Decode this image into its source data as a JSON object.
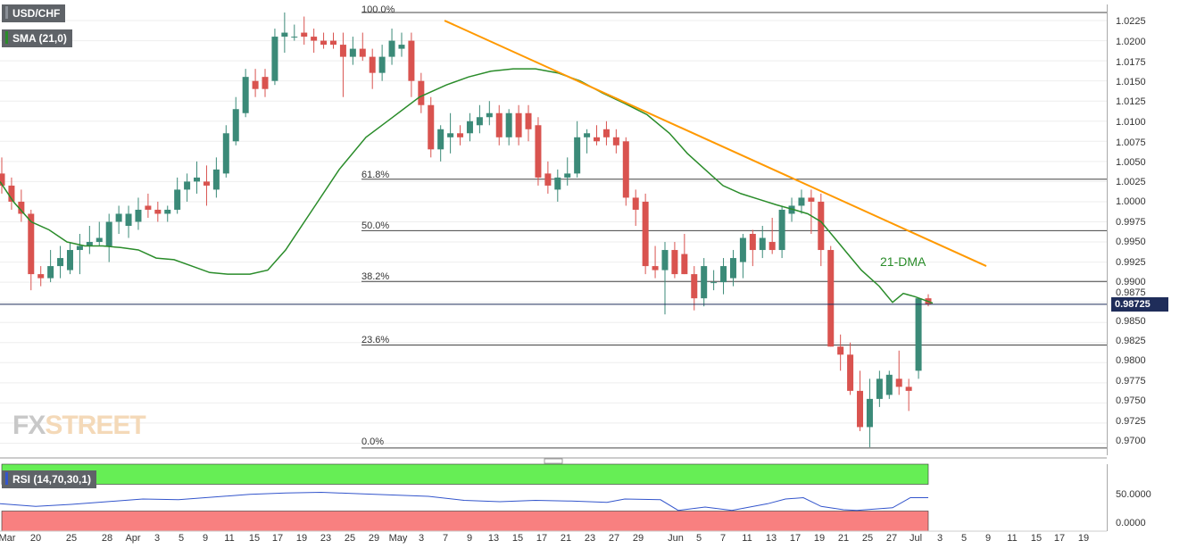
{
  "header": {
    "symbol": "USD/CHF",
    "indicator": "SMA (21,0)"
  },
  "rsi_panel": {
    "label": "RSI (14,70,30,1)",
    "ticks": [
      "50.0000",
      "0.0000"
    ]
  },
  "logo": {
    "part1": "FX",
    "part2": "STREET"
  },
  "annotation": {
    "dma_label": "21-DMA"
  },
  "current_price": {
    "label": "0.98725",
    "value": 0.98725
  },
  "colors": {
    "bull": "#3b8a78",
    "bear": "#d9534f",
    "sma": "#2a8c2a",
    "trend": "#ff9900",
    "rsi": "#3355cc",
    "overbought": "#66ee55",
    "oversold": "#f88080",
    "price_tag": "#1f2d5a"
  },
  "chart_data": {
    "type": "candlestick",
    "title": "USD/CHF",
    "ylim": [
      0.9685,
      1.0245
    ],
    "y_ticks": [
      "1.0225",
      "1.0200",
      "1.0175",
      "1.0150",
      "1.0125",
      "1.0100",
      "1.0075",
      "1.0050",
      "1.0025",
      "1.0000",
      "0.9975",
      "0.9950",
      "0.9925",
      "0.9900",
      "0.9875",
      "0.9850",
      "0.9825",
      "0.9800",
      "0.9775",
      "0.9750",
      "0.9725",
      "0.9700"
    ],
    "x_ticks": [
      "Mar",
      "20",
      "25",
      "28",
      "Apr",
      "3",
      "5",
      "9",
      "11",
      "15",
      "17",
      "19",
      "23",
      "25",
      "29",
      "May",
      "3",
      "7",
      "9",
      "13",
      "15",
      "17",
      "21",
      "23",
      "27",
      "29",
      "Jun",
      "5",
      "7",
      "11",
      "13",
      "17",
      "19",
      "21",
      "25",
      "27",
      "Jul",
      "3",
      "5",
      "9",
      "11",
      "15",
      "17",
      "19"
    ],
    "fib_levels": [
      {
        "label": "100.0%",
        "value": 1.0235
      },
      {
        "label": "61.8%",
        "value": 1.0028
      },
      {
        "label": "50.0%",
        "value": 0.9964
      },
      {
        "label": "38.2%",
        "value": 0.9901
      },
      {
        "label": "23.6%",
        "value": 0.9822
      },
      {
        "label": "0.0%",
        "value": 0.9694
      }
    ],
    "candles": [
      {
        "o": 1.0035,
        "h": 1.0055,
        "l": 1.001,
        "c": 1.002
      },
      {
        "o": 1.002,
        "h": 1.003,
        "l": 0.999,
        "c": 1.0
      },
      {
        "o": 1.0,
        "h": 1.0015,
        "l": 0.9975,
        "c": 0.9985
      },
      {
        "o": 0.9985,
        "h": 0.999,
        "l": 0.989,
        "c": 0.991
      },
      {
        "o": 0.991,
        "h": 0.992,
        "l": 0.9895,
        "c": 0.9905
      },
      {
        "o": 0.9905,
        "h": 0.994,
        "l": 0.99,
        "c": 0.992
      },
      {
        "o": 0.992,
        "h": 0.9945,
        "l": 0.9905,
        "c": 0.993
      },
      {
        "o": 0.9915,
        "h": 0.995,
        "l": 0.991,
        "c": 0.994
      },
      {
        "o": 0.994,
        "h": 0.996,
        "l": 0.991,
        "c": 0.9945
      },
      {
        "o": 0.9945,
        "h": 0.997,
        "l": 0.9935,
        "c": 0.995
      },
      {
        "o": 0.995,
        "h": 0.9975,
        "l": 0.9945,
        "c": 0.9955
      },
      {
        "o": 0.9945,
        "h": 0.9985,
        "l": 0.9925,
        "c": 0.9975
      },
      {
        "o": 0.9975,
        "h": 0.9995,
        "l": 0.996,
        "c": 0.9985
      },
      {
        "o": 0.997,
        "h": 0.9995,
        "l": 0.9955,
        "c": 0.9985
      },
      {
        "o": 0.9975,
        "h": 1.0005,
        "l": 0.9965,
        "c": 0.999
      },
      {
        "o": 0.9995,
        "h": 1.001,
        "l": 0.998,
        "c": 0.999
      },
      {
        "o": 0.999,
        "h": 1.0,
        "l": 0.9975,
        "c": 0.9985
      },
      {
        "o": 0.9985,
        "h": 0.9995,
        "l": 0.9975,
        "c": 0.999
      },
      {
        "o": 0.999,
        "h": 1.003,
        "l": 0.9985,
        "c": 1.0015
      },
      {
        "o": 1.0015,
        "h": 1.0035,
        "l": 1.0,
        "c": 1.0025
      },
      {
        "o": 1.0025,
        "h": 1.005,
        "l": 1.001,
        "c": 1.003
      },
      {
        "o": 1.0025,
        "h": 1.0045,
        "l": 0.9995,
        "c": 1.002
      },
      {
        "o": 1.0015,
        "h": 1.0055,
        "l": 1.0005,
        "c": 1.004
      },
      {
        "o": 1.0035,
        "h": 1.0095,
        "l": 1.003,
        "c": 1.0085
      },
      {
        "o": 1.0075,
        "h": 1.013,
        "l": 1.007,
        "c": 1.0115
      },
      {
        "o": 1.011,
        "h": 1.0165,
        "l": 1.0105,
        "c": 1.0155
      },
      {
        "o": 1.015,
        "h": 1.0165,
        "l": 1.013,
        "c": 1.014
      },
      {
        "o": 1.0155,
        "h": 1.0165,
        "l": 1.013,
        "c": 1.014
      },
      {
        "o": 1.015,
        "h": 1.0215,
        "l": 1.0145,
        "c": 1.0205
      },
      {
        "o": 1.0205,
        "h": 1.0235,
        "l": 1.0185,
        "c": 1.021
      },
      {
        "o": 1.0205,
        "h": 1.022,
        "l": 1.02,
        "c": 1.0205
      },
      {
        "o": 1.021,
        "h": 1.023,
        "l": 1.0195,
        "c": 1.0205
      },
      {
        "o": 1.0205,
        "h": 1.0215,
        "l": 1.0185,
        "c": 1.02
      },
      {
        "o": 1.02,
        "h": 1.021,
        "l": 1.019,
        "c": 1.0195
      },
      {
        "o": 1.02,
        "h": 1.021,
        "l": 1.019,
        "c": 1.0195
      },
      {
        "o": 1.0195,
        "h": 1.021,
        "l": 1.013,
        "c": 1.018
      },
      {
        "o": 1.018,
        "h": 1.0205,
        "l": 1.017,
        "c": 1.019
      },
      {
        "o": 1.019,
        "h": 1.021,
        "l": 1.0175,
        "c": 1.018
      },
      {
        "o": 1.018,
        "h": 1.019,
        "l": 1.014,
        "c": 1.016
      },
      {
        "o": 1.016,
        "h": 1.0195,
        "l": 1.015,
        "c": 1.018
      },
      {
        "o": 1.018,
        "h": 1.0215,
        "l": 1.017,
        "c": 1.02
      },
      {
        "o": 1.019,
        "h": 1.021,
        "l": 1.018,
        "c": 1.0195
      },
      {
        "o": 1.02,
        "h": 1.021,
        "l": 1.013,
        "c": 1.015
      },
      {
        "o": 1.015,
        "h": 1.016,
        "l": 1.011,
        "c": 1.012
      },
      {
        "o": 1.012,
        "h": 1.013,
        "l": 1.0055,
        "c": 1.0065
      },
      {
        "o": 1.0065,
        "h": 1.0095,
        "l": 1.005,
        "c": 1.009
      },
      {
        "o": 1.008,
        "h": 1.011,
        "l": 1.006,
        "c": 1.0085
      },
      {
        "o": 1.0085,
        "h": 1.0095,
        "l": 1.007,
        "c": 1.008
      },
      {
        "o": 1.0085,
        "h": 1.011,
        "l": 1.0075,
        "c": 1.01
      },
      {
        "o": 1.0095,
        "h": 1.012,
        "l": 1.0085,
        "c": 1.0105
      },
      {
        "o": 1.0105,
        "h": 1.0125,
        "l": 1.0095,
        "c": 1.011
      },
      {
        "o": 1.011,
        "h": 1.012,
        "l": 1.007,
        "c": 1.008
      },
      {
        "o": 1.008,
        "h": 1.0115,
        "l": 1.007,
        "c": 1.011
      },
      {
        "o": 1.011,
        "h": 1.012,
        "l": 1.007,
        "c": 1.008
      },
      {
        "o": 1.011,
        "h": 1.012,
        "l": 1.0075,
        "c": 1.009
      },
      {
        "o": 1.0095,
        "h": 1.0105,
        "l": 1.002,
        "c": 1.003
      },
      {
        "o": 1.0035,
        "h": 1.005,
        "l": 1.001,
        "c": 1.002
      },
      {
        "o": 1.0015,
        "h": 1.004,
        "l": 1.0,
        "c": 1.003
      },
      {
        "o": 1.003,
        "h": 1.0055,
        "l": 1.002,
        "c": 1.0035
      },
      {
        "o": 1.0035,
        "h": 1.01,
        "l": 1.003,
        "c": 1.008
      },
      {
        "o": 1.008,
        "h": 1.009,
        "l": 1.006,
        "c": 1.0085
      },
      {
        "o": 1.008,
        "h": 1.0095,
        "l": 1.007,
        "c": 1.0075
      },
      {
        "o": 1.009,
        "h": 1.01,
        "l": 1.007,
        "c": 1.008
      },
      {
        "o": 1.008,
        "h": 1.009,
        "l": 1.006,
        "c": 1.007
      },
      {
        "o": 1.0075,
        "h": 1.008,
        "l": 0.9995,
        "c": 1.0005
      },
      {
        "o": 1.0005,
        "h": 1.0015,
        "l": 0.997,
        "c": 0.999
      },
      {
        "o": 1.0,
        "h": 1.001,
        "l": 0.991,
        "c": 0.992
      },
      {
        "o": 0.992,
        "h": 0.9945,
        "l": 0.9905,
        "c": 0.9915
      },
      {
        "o": 0.9915,
        "h": 0.995,
        "l": 0.986,
        "c": 0.994
      },
      {
        "o": 0.994,
        "h": 0.995,
        "l": 0.9905,
        "c": 0.991
      },
      {
        "o": 0.9935,
        "h": 0.996,
        "l": 0.991,
        "c": 0.991
      },
      {
        "o": 0.991,
        "h": 0.992,
        "l": 0.9865,
        "c": 0.988
      },
      {
        "o": 0.988,
        "h": 0.993,
        "l": 0.987,
        "c": 0.992
      },
      {
        "o": 0.99,
        "h": 0.9915,
        "l": 0.989,
        "c": 0.99
      },
      {
        "o": 0.99,
        "h": 0.993,
        "l": 0.9885,
        "c": 0.992
      },
      {
        "o": 0.9905,
        "h": 0.994,
        "l": 0.9895,
        "c": 0.993
      },
      {
        "o": 0.9925,
        "h": 0.996,
        "l": 0.9905,
        "c": 0.9955
      },
      {
        "o": 0.996,
        "h": 0.9965,
        "l": 0.992,
        "c": 0.994
      },
      {
        "o": 0.994,
        "h": 0.997,
        "l": 0.993,
        "c": 0.9955
      },
      {
        "o": 0.995,
        "h": 0.998,
        "l": 0.9935,
        "c": 0.994
      },
      {
        "o": 0.994,
        "h": 0.9995,
        "l": 0.993,
        "c": 0.999
      },
      {
        "o": 0.9985,
        "h": 1.0005,
        "l": 0.9975,
        "c": 0.9995
      },
      {
        "o": 0.9995,
        "h": 1.0015,
        "l": 0.9985,
        "c": 1.0005
      },
      {
        "o": 1.0005,
        "h": 1.0015,
        "l": 0.996,
        "c": 1.0
      },
      {
        "o": 1.0,
        "h": 1.001,
        "l": 0.992,
        "c": 0.994
      },
      {
        "o": 0.994,
        "h": 0.9945,
        "l": 0.982,
        "c": 0.982
      },
      {
        "o": 0.982,
        "h": 0.9835,
        "l": 0.979,
        "c": 0.981
      },
      {
        "o": 0.981,
        "h": 0.9825,
        "l": 0.976,
        "c": 0.9765
      },
      {
        "o": 0.9765,
        "h": 0.979,
        "l": 0.9715,
        "c": 0.972
      },
      {
        "o": 0.972,
        "h": 0.978,
        "l": 0.9695,
        "c": 0.9755
      },
      {
        "o": 0.9755,
        "h": 0.979,
        "l": 0.9745,
        "c": 0.978
      },
      {
        "o": 0.976,
        "h": 0.979,
        "l": 0.9755,
        "c": 0.9785
      },
      {
        "o": 0.978,
        "h": 0.9815,
        "l": 0.976,
        "c": 0.977
      },
      {
        "o": 0.977,
        "h": 0.978,
        "l": 0.974,
        "c": 0.9765
      },
      {
        "o": 0.979,
        "h": 0.988,
        "l": 0.978,
        "c": 0.988
      },
      {
        "o": 0.988,
        "h": 0.9885,
        "l": 0.987,
        "c": 0.9873
      }
    ],
    "sma": [
      [
        0,
        1.0025
      ],
      [
        15,
        1.0
      ],
      [
        35,
        0.9975
      ],
      [
        55,
        0.9965
      ],
      [
        75,
        0.995
      ],
      [
        95,
        0.9945
      ],
      [
        115,
        0.9945
      ],
      [
        135,
        0.9943
      ],
      [
        155,
        0.994
      ],
      [
        175,
        0.993
      ],
      [
        195,
        0.9928
      ],
      [
        215,
        0.992
      ],
      [
        235,
        0.9912
      ],
      [
        255,
        0.991
      ],
      [
        280,
        0.991
      ],
      [
        300,
        0.9915
      ],
      [
        320,
        0.994
      ],
      [
        350,
        0.999
      ],
      [
        380,
        1.004
      ],
      [
        410,
        1.008
      ],
      [
        440,
        1.0105
      ],
      [
        470,
        1.013
      ],
      [
        500,
        1.0145
      ],
      [
        525,
        1.0155
      ],
      [
        550,
        1.0162
      ],
      [
        575,
        1.0165
      ],
      [
        600,
        1.0165
      ],
      [
        625,
        1.016
      ],
      [
        650,
        1.015
      ],
      [
        675,
        1.0135
      ],
      [
        700,
        1.0122
      ],
      [
        725,
        1.0108
      ],
      [
        750,
        1.0085
      ],
      [
        770,
        1.006
      ],
      [
        790,
        1.004
      ],
      [
        810,
        1.002
      ],
      [
        830,
        1.001
      ],
      [
        850,
        1.0003
      ],
      [
        870,
        0.9996
      ],
      [
        890,
        0.999
      ],
      [
        905,
        0.9985
      ],
      [
        920,
        0.9975
      ],
      [
        935,
        0.9955
      ],
      [
        950,
        0.9935
      ],
      [
        965,
        0.9915
      ],
      [
        985,
        0.9895
      ],
      [
        1000,
        0.9875
      ],
      [
        1012,
        0.9886
      ],
      [
        1025,
        0.9882
      ],
      [
        1045,
        0.9874
      ]
    ],
    "trendline": {
      "start": [
        498,
        1.0225
      ],
      "end": [
        1105,
        0.992
      ]
    },
    "rsi": {
      "label": "RSI (14,70,30,1)",
      "ylim": [
        0,
        100
      ],
      "overbought": 70,
      "oversold": 30,
      "points": [
        [
          0,
          41
        ],
        [
          40,
          37
        ],
        [
          80,
          40
        ],
        [
          120,
          44
        ],
        [
          160,
          48
        ],
        [
          200,
          47
        ],
        [
          240,
          51
        ],
        [
          280,
          55
        ],
        [
          320,
          57
        ],
        [
          360,
          58
        ],
        [
          400,
          56
        ],
        [
          440,
          54
        ],
        [
          480,
          52
        ],
        [
          520,
          46
        ],
        [
          560,
          44
        ],
        [
          600,
          46
        ],
        [
          640,
          45
        ],
        [
          680,
          43
        ],
        [
          700,
          48
        ],
        [
          740,
          47
        ],
        [
          760,
          31
        ],
        [
          790,
          36
        ],
        [
          820,
          31
        ],
        [
          860,
          41
        ],
        [
          880,
          48
        ],
        [
          900,
          50
        ],
        [
          920,
          37
        ],
        [
          945,
          32
        ],
        [
          960,
          31
        ],
        [
          1000,
          35
        ],
        [
          1020,
          50
        ],
        [
          1040,
          50
        ]
      ]
    }
  }
}
